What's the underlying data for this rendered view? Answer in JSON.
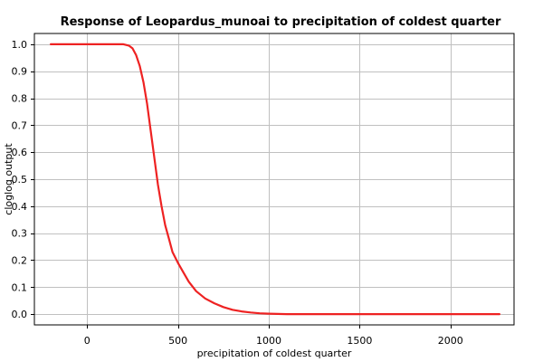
{
  "chart_data": {
    "type": "line",
    "title": "Response of Leopardus_munoai to precipitation of coldest quarter",
    "xlabel": "precipitation of coldest quarter",
    "ylabel": "cloglog output",
    "xlim": [
      -290,
      2350
    ],
    "ylim": [
      -0.04,
      1.04
    ],
    "xticks": [
      0,
      500,
      1000,
      1500,
      2000
    ],
    "yticks": [
      0.0,
      0.1,
      0.2,
      0.3,
      0.4,
      0.5,
      0.6,
      0.7,
      0.8,
      0.9,
      1.0
    ],
    "ytick_labels": [
      "0.0",
      "0.1",
      "0.2",
      "0.3",
      "0.4",
      "0.5",
      "0.6",
      "0.7",
      "0.8",
      "0.9",
      "1.0"
    ],
    "grid": true,
    "series": [
      {
        "color": "#ee2222",
        "x": [
          -200,
          0,
          200,
          230,
          250,
          270,
          290,
          310,
          330,
          350,
          370,
          390,
          410,
          430,
          450,
          470,
          500,
          530,
          560,
          600,
          650,
          700,
          750,
          800,
          850,
          900,
          950,
          1000,
          1050,
          1100,
          1500,
          2000,
          2270
        ],
        "y": [
          1.0,
          1.0,
          1.0,
          0.995,
          0.985,
          0.96,
          0.92,
          0.86,
          0.78,
          0.68,
          0.58,
          0.48,
          0.4,
          0.33,
          0.28,
          0.23,
          0.19,
          0.155,
          0.12,
          0.085,
          0.058,
          0.04,
          0.026,
          0.016,
          0.01,
          0.006,
          0.003,
          0.0015,
          0.0005,
          0.0,
          0.0,
          0.0,
          0.0
        ]
      }
    ]
  }
}
